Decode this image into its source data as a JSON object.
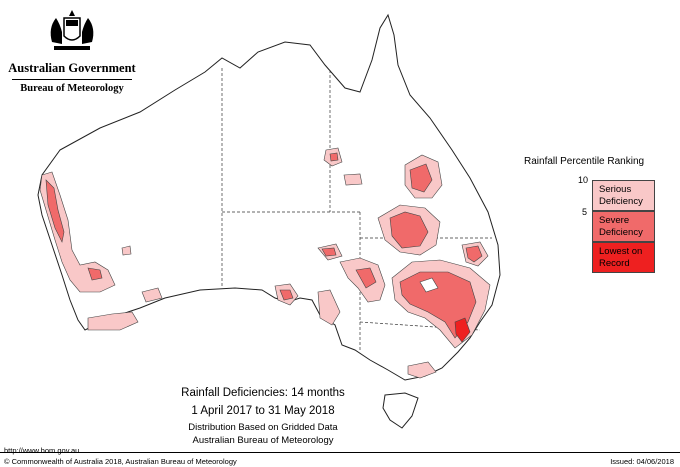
{
  "logo": {
    "government": "Australian Government",
    "bureau": "Bureau of Meteorology"
  },
  "legend": {
    "title": "Rainfall Percentile Ranking",
    "ticks": [
      "10",
      "5"
    ],
    "categories": [
      {
        "line1": "Serious",
        "line2": "Deficiency",
        "color": "#f9c8c8"
      },
      {
        "line1": "Severe",
        "line2": "Deficiency",
        "color": "#f06a6a"
      },
      {
        "line1": "Lowest on",
        "line2": "Record",
        "color": "#ee2020"
      }
    ]
  },
  "caption": {
    "title": "Rainfall Deficiencies: 14 months",
    "dates": "1 April 2017 to 31 May 2018",
    "line1": "Distribution Based on Gridded Data",
    "line2": "Australian Bureau of Meteorology"
  },
  "footer": {
    "url": "http://www.bom.gov.au",
    "copyright": "© Commonwealth of Australia 2018, Australian Bureau of Meteorology",
    "issued": "Issued: 04/06/2018"
  },
  "colors": {
    "serious": "#f9c8c8",
    "severe": "#f06a6a",
    "lowest": "#ee2020",
    "land": "#ffffff",
    "outline": "#222222"
  }
}
